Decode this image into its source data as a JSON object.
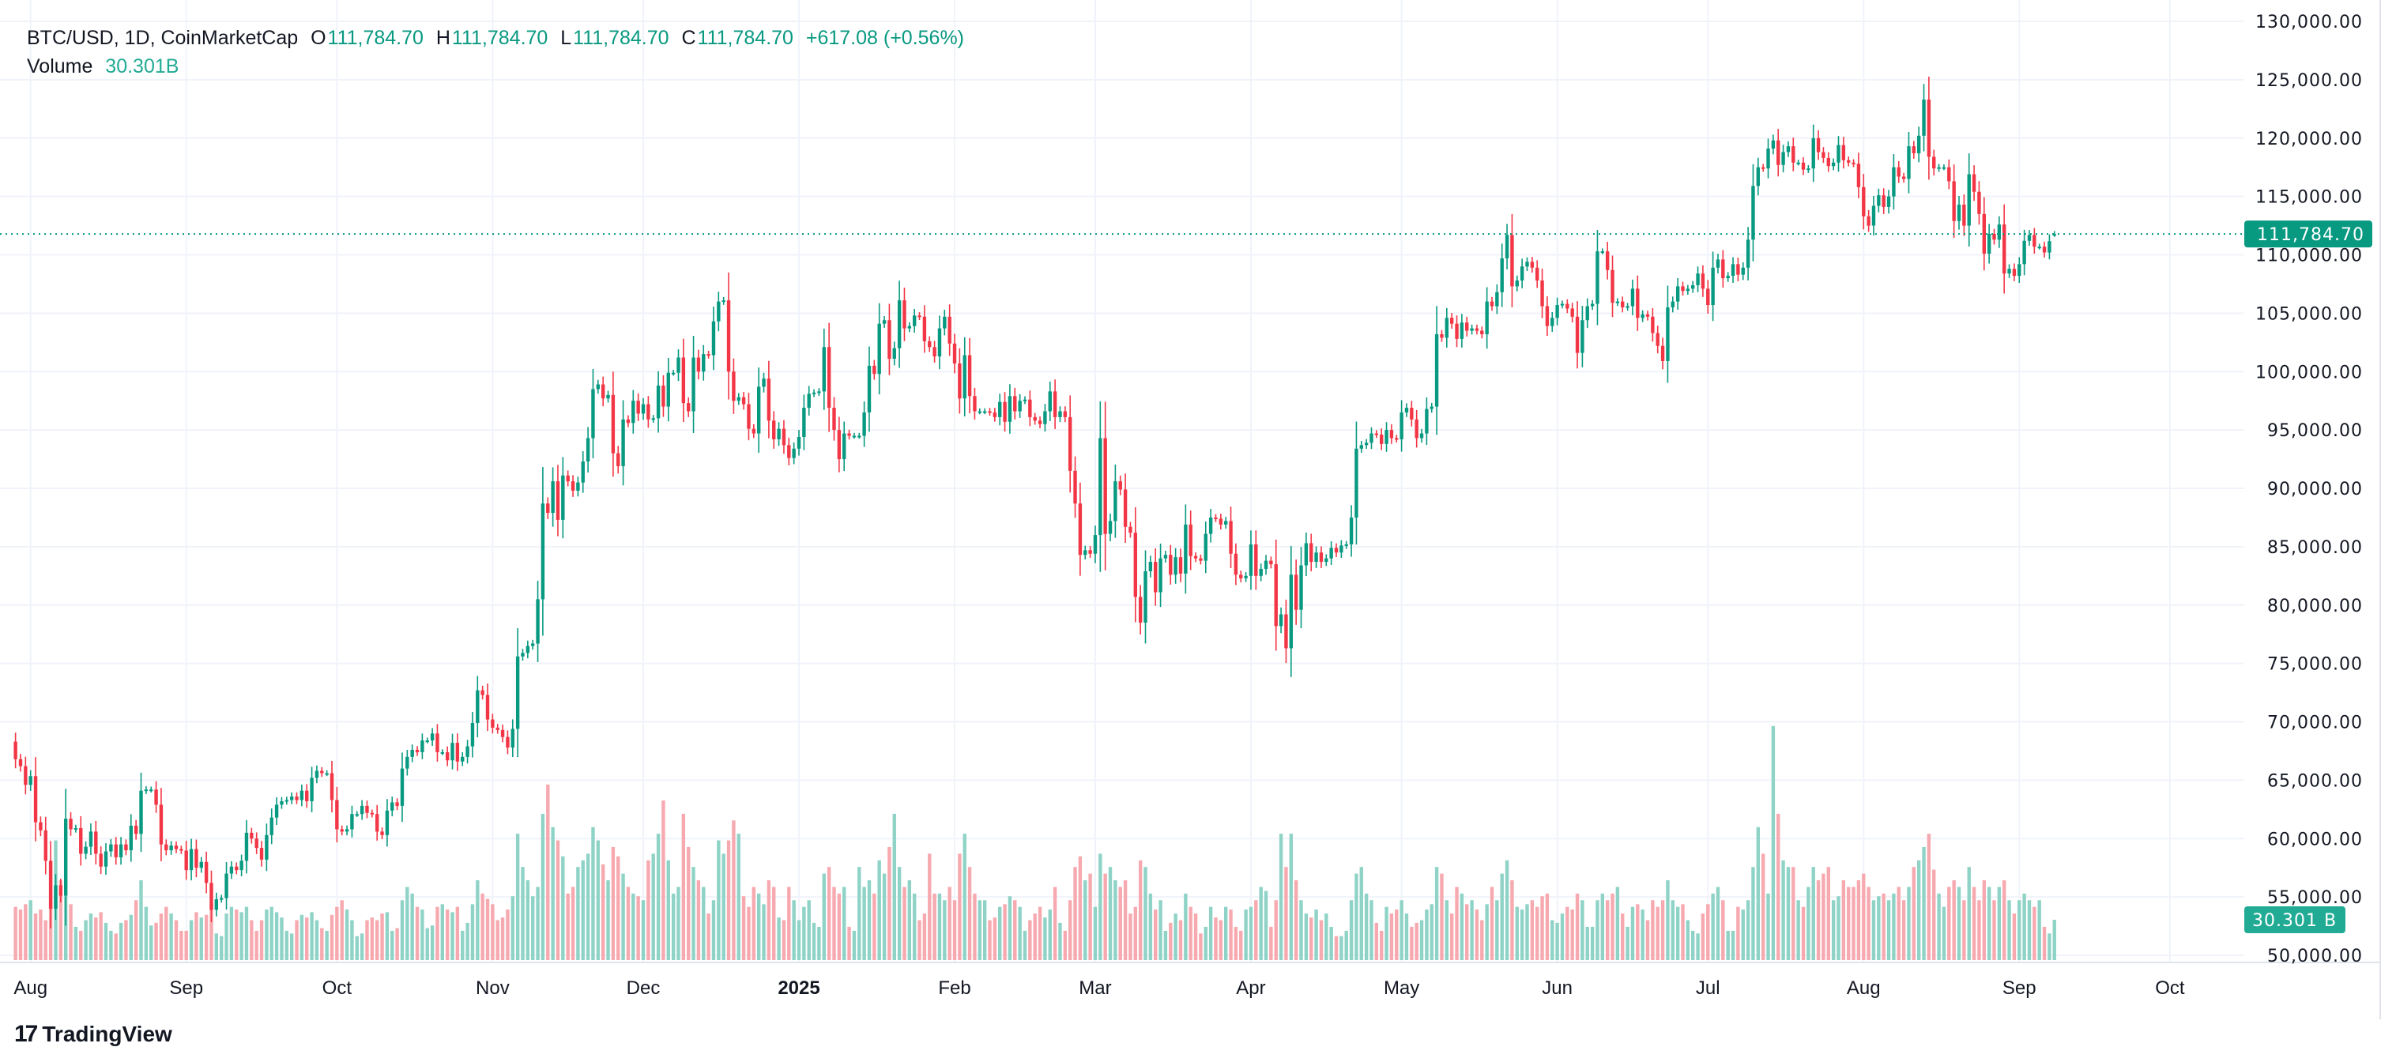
{
  "header": {
    "symbol": "BTC/USD, 1D, CoinMarketCap",
    "o_label": "O",
    "o_value": "111,784.70",
    "h_label": "H",
    "h_value": "111,784.70",
    "l_label": "L",
    "l_value": "111,784.70",
    "c_label": "C",
    "c_value": "111,784.70",
    "change": "+617.08 (+0.56%)",
    "volume_label": "Volume",
    "volume_value": "30.301B"
  },
  "price_tag": "111,784.70",
  "volume_tag": "30.301 B",
  "branding": {
    "name": "TradingView",
    "icon": "tradingview-logo-icon"
  },
  "colors": {
    "up": "#089981",
    "down": "#f23645",
    "volume_up": "#8fd3c7",
    "volume_down": "#f7a9b0",
    "price_tag": "#089981",
    "volume_tag": "#22ab94",
    "grid": "#f0f3fa"
  },
  "chart_data": {
    "type": "candlestick",
    "interval": "1D",
    "ylim": [
      50000,
      130000
    ],
    "y_ticks": [
      "130,000.00",
      "125,000.00",
      "120,000.00",
      "115,000.00",
      "110,000.00",
      "105,000.00",
      "100,000.00",
      "95,000.00",
      "90,000.00",
      "85,000.00",
      "80,000.00",
      "75,000.00",
      "70,000.00",
      "65,000.00",
      "60,000.00",
      "55,000.00",
      "50,000.00"
    ],
    "x_ticks": [
      {
        "label": "Aug",
        "date": "2024-08-01"
      },
      {
        "label": "Sep",
        "date": "2024-09-01"
      },
      {
        "label": "Oct",
        "date": "2024-10-01"
      },
      {
        "label": "Nov",
        "date": "2024-11-01"
      },
      {
        "label": "Dec",
        "date": "2024-12-01"
      },
      {
        "label": "2025",
        "date": "2025-01-01",
        "bold": true
      },
      {
        "label": "Feb",
        "date": "2025-02-01"
      },
      {
        "label": "Mar",
        "date": "2025-03-01"
      },
      {
        "label": "Apr",
        "date": "2025-04-01"
      },
      {
        "label": "May",
        "date": "2025-05-01"
      },
      {
        "label": "Jun",
        "date": "2025-06-01"
      },
      {
        "label": "Jul",
        "date": "2025-07-01"
      },
      {
        "label": "Aug",
        "date": "2025-08-01"
      },
      {
        "label": "Sep",
        "date": "2025-09-01"
      },
      {
        "label": "Oct",
        "date": "2025-10-01"
      }
    ],
    "grid": true,
    "first_open": 68300,
    "last_price": 111784.7,
    "volume_unit": "B",
    "months": [
      {
        "month": "2024-07",
        "first_day": 29,
        "close": [
          66800,
          66200,
          64600
        ],
        "volume": [
          40,
          38,
          42
        ]
      },
      {
        "month": "2024-08",
        "first_day": 1,
        "close": [
          65350,
          61400,
          60700,
          58100,
          53990,
          56000,
          55100,
          61700,
          60800,
          60900,
          58700,
          59300,
          60600,
          58700,
          57600,
          58900,
          59500,
          58400,
          59500,
          59000,
          61100,
          60400,
          64100,
          64200,
          64200,
          62900,
          59500,
          59000,
          59400,
          59100,
          58970
        ],
        "volume": [
          45,
          35,
          38,
          30,
          70,
          90,
          60,
          48,
          42,
          25,
          22,
          30,
          35,
          32,
          36,
          28,
          22,
          20,
          28,
          30,
          34,
          45,
          60,
          40,
          26,
          28,
          35,
          40,
          35,
          30,
          22
        ]
      },
      {
        "month": "2024-09",
        "first_day": 1,
        "close": [
          57300,
          59100,
          57500,
          58000,
          56200,
          53900,
          54800,
          54900,
          57000,
          57600,
          57300,
          58100,
          60500,
          60000,
          59200,
          58200,
          60300,
          61800,
          62900,
          63200,
          63300,
          63600,
          63300,
          64100,
          63200,
          65200,
          65800,
          65600,
          65600,
          63300
        ],
        "volume": [
          22,
          30,
          36,
          32,
          34,
          42,
          20,
          18,
          35,
          40,
          38,
          36,
          40,
          30,
          22,
          30,
          38,
          40,
          36,
          32,
          22,
          20,
          30,
          34,
          32,
          36,
          30,
          24,
          22,
          34
        ]
      },
      {
        "month": "2024-10",
        "first_day": 1,
        "close": [
          60800,
          60600,
          60800,
          62100,
          62100,
          62800,
          62200,
          62100,
          60600,
          60300,
          62400,
          63100,
          62800,
          66000,
          67000,
          67600,
          67400,
          68400,
          68400,
          69000,
          67400,
          67400,
          66700,
          68200,
          66600,
          67000,
          67900,
          69900,
          72700,
          72300,
          70200
        ],
        "volume": [
          40,
          45,
          38,
          30,
          18,
          20,
          30,
          32,
          30,
          35,
          36,
          22,
          24,
          45,
          55,
          50,
          40,
          38,
          24,
          26,
          40,
          42,
          38,
          36,
          40,
          22,
          28,
          42,
          60,
          50,
          46
        ]
      },
      {
        "month": "2024-11",
        "first_day": 1,
        "close": [
          69500,
          69300,
          68700,
          67800,
          69400,
          75600,
          75900,
          76500,
          76700,
          80500,
          88700,
          87900,
          90600,
          87300,
          91100,
          90600,
          89800,
          90500,
          92300,
          94300,
          98500,
          98900,
          97700,
          98000,
          93000,
          91900,
          95900,
          95600,
          97500,
          96400
        ],
        "volume": [
          42,
          30,
          32,
          38,
          48,
          95,
          70,
          60,
          48,
          55,
          110,
          132,
          100,
          90,
          78,
          50,
          55,
          70,
          75,
          80,
          100,
          90,
          72,
          60,
          85,
          78,
          65,
          55,
          50,
          48
        ]
      },
      {
        "month": "2024-12",
        "first_day": 1,
        "close": [
          97200,
          95900,
          96000,
          98800,
          97000,
          99900,
          99900,
          101200,
          97300,
          96600,
          101200,
          100000,
          101500,
          101400,
          104300,
          106000,
          106100,
          100000,
          97500,
          97800,
          97200,
          95100,
          94700,
          98700,
          99400,
          95800,
          94200,
          95100,
          93700,
          92600,
          93400
        ],
        "volume": [
          45,
          75,
          80,
          95,
          120,
          75,
          50,
          55,
          110,
          85,
          70,
          60,
          55,
          35,
          45,
          90,
          80,
          90,
          105,
          95,
          48,
          40,
          55,
          50,
          42,
          60,
          55,
          32,
          30,
          55,
          45
        ]
      },
      {
        "month": "2025-01",
        "first_day": 1,
        "close": [
          94400,
          96900,
          98100,
          98200,
          98300,
          102100,
          96900,
          95000,
          92500,
          94700,
          94500,
          94500,
          94500,
          96500,
          100500,
          99800,
          104100,
          104400,
          101100,
          102000,
          106100,
          103700,
          103900,
          104800,
          104700,
          102600,
          102100,
          101300,
          103700,
          104700,
          102400
        ],
        "volume": [
          30,
          40,
          45,
          28,
          25,
          65,
          70,
          55,
          50,
          55,
          25,
          22,
          70,
          55,
          60,
          50,
          75,
          65,
          85,
          110,
          70,
          55,
          60,
          50,
          30,
          35,
          80,
          50,
          50,
          45,
          55
        ]
      },
      {
        "month": "2025-02",
        "first_day": 1,
        "close": [
          100700,
          97700,
          101400,
          97900,
          96600,
          96600,
          96600,
          96500,
          96100,
          97400,
          95700,
          97900,
          96600,
          97500,
          97600,
          96100,
          95800,
          95500,
          96600,
          98300,
          96100,
          96600,
          96100,
          91500,
          88700,
          84300,
          84700,
          84400
        ],
        "volume": [
          45,
          80,
          95,
          70,
          50,
          45,
          45,
          30,
          32,
          40,
          42,
          48,
          45,
          40,
          22,
          30,
          35,
          40,
          32,
          38,
          55,
          28,
          22,
          45,
          70,
          78,
          60,
          65
        ]
      },
      {
        "month": "2025-03",
        "first_day": 1,
        "close": [
          86000,
          94300,
          86100,
          87200,
          90600,
          89900,
          86700,
          86200,
          80700,
          78500,
          82900,
          83700,
          81100,
          84000,
          84300,
          82600,
          84100,
          82700,
          86900,
          84200,
          84000,
          83800,
          86100,
          87500,
          87400,
          86900,
          87200,
          84400,
          82600,
          82300,
          82500
        ],
        "volume": [
          40,
          80,
          65,
          70,
          60,
          55,
          60,
          35,
          40,
          75,
          70,
          50,
          38,
          45,
          22,
          28,
          35,
          30,
          50,
          40,
          35,
          20,
          25,
          40,
          32,
          30,
          40,
          38,
          25,
          22,
          38
        ]
      },
      {
        "month": "2025-04",
        "first_day": 1,
        "close": [
          85200,
          82500,
          83100,
          83800,
          83500,
          78200,
          79200,
          76300,
          82600,
          79600,
          83400,
          85300,
          83700,
          84500,
          83700,
          84000,
          84900,
          84500,
          85100,
          85200,
          87500,
          93400,
          93700,
          93900,
          94700,
          94600,
          93800,
          95000,
          94300,
          94200
        ],
        "volume": [
          40,
          45,
          55,
          52,
          25,
          45,
          95,
          70,
          95,
          60,
          45,
          35,
          32,
          38,
          30,
          35,
          25,
          18,
          18,
          22,
          45,
          65,
          70,
          50,
          45,
          28,
          22,
          40,
          35,
          38
        ]
      },
      {
        "month": "2025-05",
        "first_day": 1,
        "close": [
          96500,
          96900,
          95900,
          94300,
          94700,
          96800,
          97000,
          103200,
          102900,
          104600,
          104100,
          102800,
          104200,
          103500,
          103700,
          103500,
          103200,
          106000,
          105600,
          106800,
          109700,
          111700,
          107300,
          107800,
          109000,
          109400,
          108900,
          107800,
          105600,
          103900,
          104600
        ],
        "volume": [
          45,
          35,
          25,
          28,
          30,
          38,
          42,
          70,
          65,
          45,
          35,
          55,
          50,
          42,
          45,
          38,
          30,
          42,
          55,
          45,
          65,
          75,
          60,
          40,
          38,
          42,
          45,
          40,
          48,
          50,
          30
        ]
      },
      {
        "month": "2025-06",
        "first_day": 1,
        "close": [
          105700,
          105800,
          105400,
          104700,
          101600,
          104400,
          105600,
          105800,
          110300,
          110300,
          108700,
          105900,
          106000,
          105500,
          105600,
          107100,
          104600,
          104900,
          104700,
          103300,
          102200,
          100900,
          105500,
          106000,
          107300,
          106900,
          107100,
          107400,
          108400,
          107100
        ],
        "volume": [
          28,
          35,
          40,
          38,
          50,
          45,
          25,
          25,
          45,
          50,
          45,
          50,
          55,
          35,
          25,
          40,
          42,
          38,
          30,
          45,
          40,
          45,
          60,
          45,
          40,
          42,
          30,
          22,
          20,
          35
        ]
      },
      {
        "month": "2025-07",
        "first_day": 1,
        "close": [
          105700,
          108900,
          109600,
          108000,
          108200,
          109200,
          108300,
          108900,
          111300,
          115900,
          117500,
          117400,
          119100,
          119800,
          117700,
          118800,
          119300,
          117900,
          117900,
          117300,
          117400,
          120000,
          118800,
          118300,
          117600,
          117900,
          119400,
          118100,
          117900,
          117800,
          115800
        ],
        "volume": [
          42,
          50,
          55,
          45,
          22,
          22,
          40,
          38,
          45,
          70,
          100,
          80,
          50,
          176,
          110,
          75,
          70,
          70,
          45,
          40,
          55,
          70,
          60,
          65,
          70,
          45,
          48,
          60,
          55,
          55,
          60
        ]
      },
      {
        "month": "2025-08",
        "first_day": 1,
        "close": [
          113300,
          112500,
          114200,
          115100,
          114100,
          115000,
          117500,
          116700,
          116500,
          119300,
          118700,
          120200,
          123300,
          118400,
          117400,
          117500,
          117500,
          116300,
          112900,
          114300,
          112500,
          116900,
          115400,
          113500,
          110100,
          111800,
          111300,
          112600,
          108400,
          108800,
          108200
        ],
        "volume": [
          65,
          55,
          45,
          48,
          50,
          45,
          50,
          55,
          45,
          55,
          70,
          75,
          85,
          95,
          68,
          50,
          40,
          55,
          60,
          55,
          45,
          70,
          55,
          45,
          60,
          55,
          45,
          55,
          60,
          45,
          35
        ]
      },
      {
        "month": "2025-09",
        "first_day": 1,
        "close": [
          109200,
          111200,
          111700,
          110700,
          110700,
          110200,
          111167.62,
          111784.7
        ],
        "volume": [
          45,
          50,
          45,
          40,
          45,
          25,
          20,
          30.301
        ]
      }
    ]
  }
}
